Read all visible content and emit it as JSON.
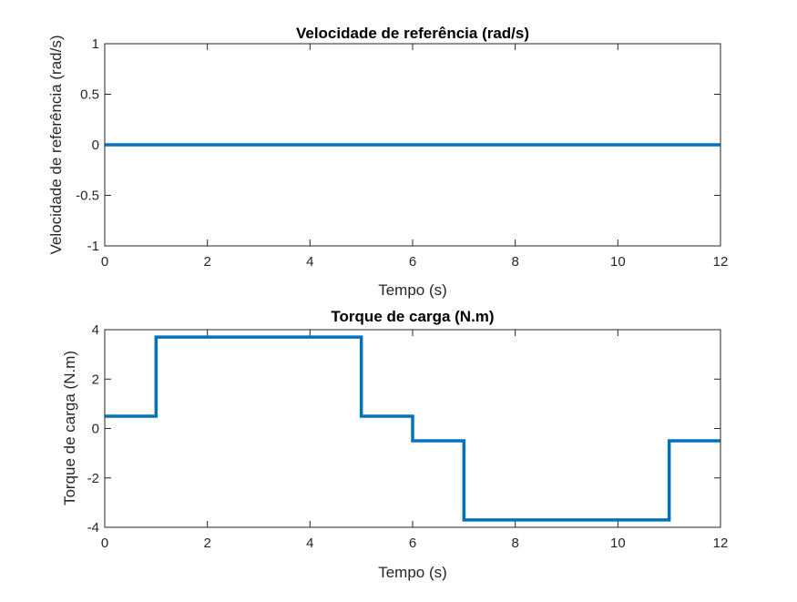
{
  "chart_data": [
    {
      "type": "line",
      "title": "Velocidade de referência (rad/s)",
      "xlabel": "Tempo (s)",
      "ylabel": "Velocidade de referência (rad/s)",
      "xlim": [
        0,
        12
      ],
      "ylim": [
        -1,
        1
      ],
      "xticks": [
        0,
        2,
        4,
        6,
        8,
        10,
        12
      ],
      "xtick_labels": [
        "0",
        "2",
        "4",
        "6",
        "8",
        "10",
        "12"
      ],
      "yticks": [
        -1,
        -0.5,
        0,
        0.5,
        1
      ],
      "ytick_labels": [
        "-1",
        "-0.5",
        "0",
        "0.5",
        "1"
      ],
      "grid": false,
      "series": [
        {
          "color": "#0072BD",
          "x": [
            0,
            12
          ],
          "y": [
            0,
            0
          ]
        }
      ]
    },
    {
      "type": "line",
      "title": "Torque de carga (N.m)",
      "xlabel": "Tempo (s)",
      "ylabel": "Torque de carga (N.m)",
      "xlim": [
        0,
        12
      ],
      "ylim": [
        -4,
        4
      ],
      "xticks": [
        0,
        2,
        4,
        6,
        8,
        10,
        12
      ],
      "xtick_labels": [
        "0",
        "2",
        "4",
        "6",
        "8",
        "10",
        "12"
      ],
      "yticks": [
        -4,
        -2,
        0,
        2,
        4
      ],
      "ytick_labels": [
        "-4",
        "-2",
        "0",
        "2",
        "4"
      ],
      "grid": false,
      "series": [
        {
          "color": "#0072BD",
          "x": [
            0,
            1,
            1,
            5,
            5,
            6,
            6,
            7,
            7,
            11,
            11,
            12
          ],
          "y": [
            0.5,
            0.5,
            3.7,
            3.7,
            0.5,
            0.5,
            -0.5,
            -0.5,
            -3.7,
            -3.7,
            -0.5,
            -0.5
          ]
        }
      ]
    }
  ]
}
